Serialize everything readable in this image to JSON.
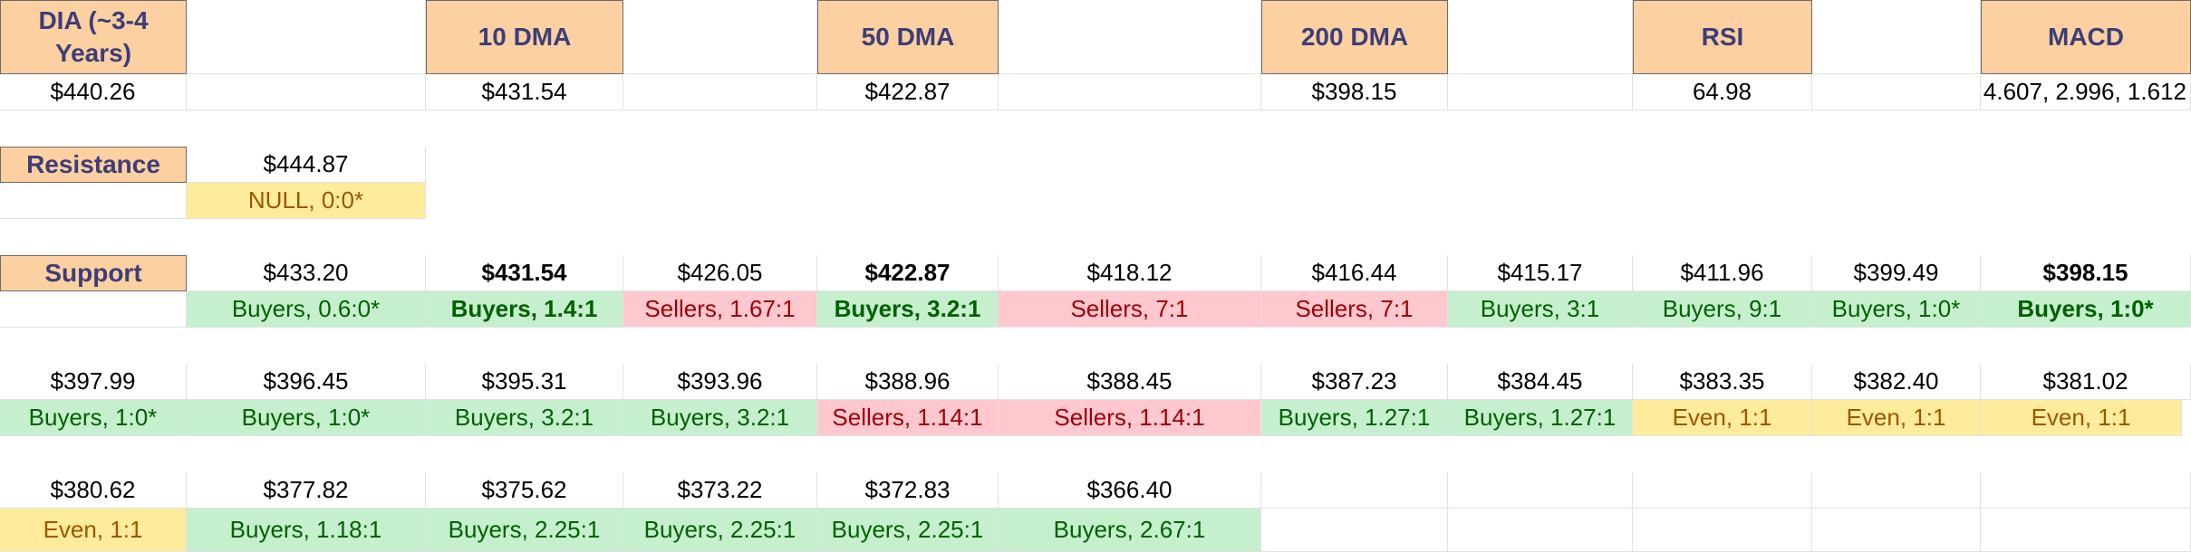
{
  "headers": {
    "dia": "DIA (~3-4 Years)",
    "dma10": "10 DMA",
    "dma50": "50 DMA",
    "dma200": "200 DMA",
    "rsi": "RSI",
    "macd": "MACD"
  },
  "values": {
    "price": "$440.26",
    "dma10": "$431.54",
    "dma50": "$422.87",
    "dma200": "$398.15",
    "rsi": "64.98",
    "macd": "4.607, 2.996, 1.612"
  },
  "resistance": {
    "label": "Resistance",
    "price": "$444.87",
    "ratio": "NULL, 0:0*"
  },
  "support": {
    "label": "Support",
    "row1": [
      {
        "price": "$433.20",
        "ratio": "Buyers, 0.6:0*",
        "tone": "green",
        "bold": false
      },
      {
        "price": "$431.54",
        "ratio": "Buyers, 1.4:1",
        "tone": "green",
        "bold": true
      },
      {
        "price": "$426.05",
        "ratio": "Sellers, 1.67:1",
        "tone": "red",
        "bold": false
      },
      {
        "price": "$422.87",
        "ratio": "Buyers, 3.2:1",
        "tone": "green",
        "bold": true
      },
      {
        "price": "$418.12",
        "ratio": "Sellers, 7:1",
        "tone": "red",
        "bold": false
      },
      {
        "price": "$416.44",
        "ratio": "Sellers, 7:1",
        "tone": "red",
        "bold": false
      },
      {
        "price": "$415.17",
        "ratio": "Buyers, 3:1",
        "tone": "green",
        "bold": false
      },
      {
        "price": "$411.96",
        "ratio": "Buyers, 9:1",
        "tone": "green",
        "bold": false
      },
      {
        "price": "$399.49",
        "ratio": "Buyers, 1:0*",
        "tone": "green",
        "bold": false
      },
      {
        "price": "$398.15",
        "ratio": "Buyers, 1:0*",
        "tone": "green",
        "bold": true
      }
    ],
    "row2": [
      {
        "price": "$397.99",
        "ratio": "Buyers, 1:0*",
        "tone": "green",
        "bold": false
      },
      {
        "price": "$396.45",
        "ratio": "Buyers, 1:0*",
        "tone": "green",
        "bold": false
      },
      {
        "price": "$395.31",
        "ratio": "Buyers, 3.2:1",
        "tone": "green",
        "bold": false
      },
      {
        "price": "$393.96",
        "ratio": "Buyers, 3.2:1",
        "tone": "green",
        "bold": false
      },
      {
        "price": "$388.96",
        "ratio": "Sellers, 1.14:1",
        "tone": "red",
        "bold": false
      },
      {
        "price": "$388.45",
        "ratio": "Sellers, 1.14:1",
        "tone": "red",
        "bold": false
      },
      {
        "price": "$387.23",
        "ratio": "Buyers, 1.27:1",
        "tone": "green",
        "bold": false
      },
      {
        "price": "$384.45",
        "ratio": "Buyers, 1.27:1",
        "tone": "green",
        "bold": false
      },
      {
        "price": "$383.35",
        "ratio": "Even, 1:1",
        "tone": "yellow",
        "bold": false
      },
      {
        "price": "$382.40",
        "ratio": "Even, 1:1",
        "tone": "yellow",
        "bold": false
      },
      {
        "price": "$381.02",
        "ratio": "Even, 1:1",
        "tone": "yellow",
        "bold": false
      }
    ],
    "row3": [
      {
        "price": "$380.62",
        "ratio": "Even, 1:1",
        "tone": "yellow",
        "bold": false
      },
      {
        "price": "$377.82",
        "ratio": "Buyers, 1.18:1",
        "tone": "green",
        "bold": false
      },
      {
        "price": "$375.62",
        "ratio": "Buyers, 2.25:1",
        "tone": "green",
        "bold": false
      },
      {
        "price": "$373.22",
        "ratio": "Buyers, 2.25:1",
        "tone": "green",
        "bold": false
      },
      {
        "price": "$372.83",
        "ratio": "Buyers, 2.25:1",
        "tone": "green",
        "bold": false
      },
      {
        "price": "$366.40",
        "ratio": "Buyers, 2.67:1",
        "tone": "green",
        "bold": false
      }
    ]
  },
  "colors": {
    "header_bg": "#fcd0a1",
    "header_text": "#3d3d78",
    "buyers_bg": "#c6efce",
    "buyers_text": "#006100",
    "sellers_bg": "#ffc7ce",
    "sellers_text": "#9c0006",
    "even_bg": "#ffeb9c",
    "even_text": "#9c5700"
  }
}
